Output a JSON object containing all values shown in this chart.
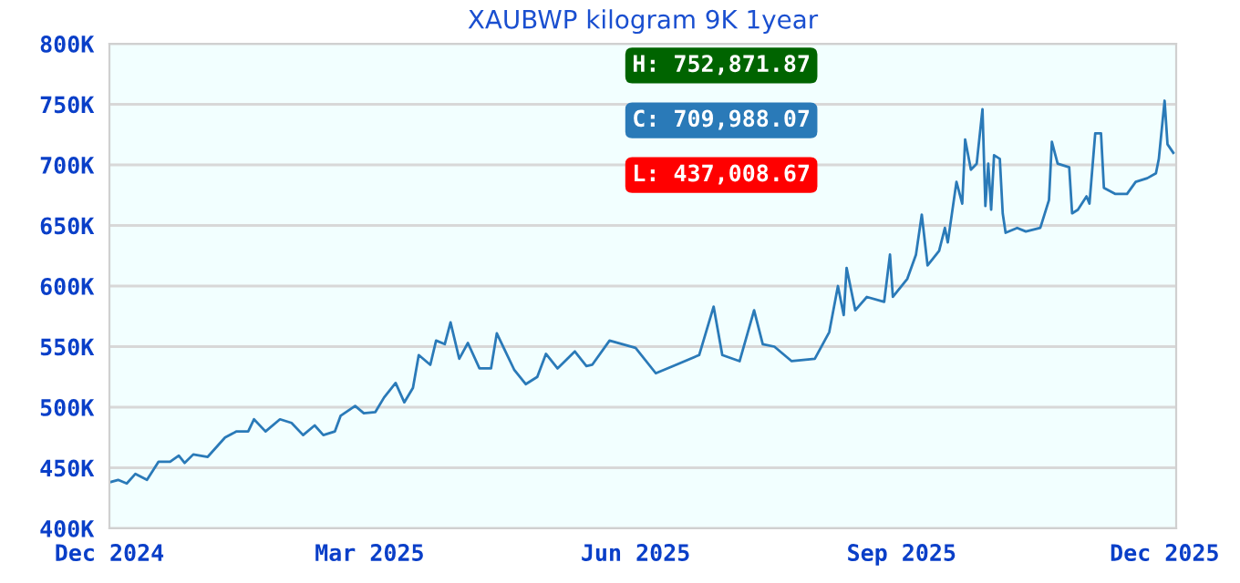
{
  "chart_data": {
    "type": "line",
    "title": "XAUBWP kilogram 9K 1year",
    "x": [
      "2024-12-01",
      "2024-12-04",
      "2024-12-07",
      "2024-12-10",
      "2024-12-14",
      "2024-12-18",
      "2024-12-22",
      "2024-12-25",
      "2024-12-27",
      "2024-12-30",
      "2025-01-04",
      "2025-01-10",
      "2025-01-14",
      "2025-01-18",
      "2025-01-20",
      "2025-01-24",
      "2025-01-29",
      "2025-02-02",
      "2025-02-06",
      "2025-02-10",
      "2025-02-13",
      "2025-02-17",
      "2025-02-19",
      "2025-02-24",
      "2025-02-27",
      "2025-03-03",
      "2025-03-06",
      "2025-03-10",
      "2025-03-13",
      "2025-03-16",
      "2025-03-18",
      "2025-03-22",
      "2025-03-24",
      "2025-03-27",
      "2025-03-29",
      "2025-04-01",
      "2025-04-04",
      "2025-04-08",
      "2025-04-12",
      "2025-04-14",
      "2025-04-17",
      "2025-04-20",
      "2025-04-24",
      "2025-04-28",
      "2025-05-01",
      "2025-05-05",
      "2025-05-11",
      "2025-05-15",
      "2025-05-17",
      "2025-05-23",
      "2025-06-01",
      "2025-06-08",
      "2025-06-15",
      "2025-06-23",
      "2025-06-28",
      "2025-07-01",
      "2025-07-07",
      "2025-07-12",
      "2025-07-15",
      "2025-07-19",
      "2025-07-25",
      "2025-08-02",
      "2025-08-07",
      "2025-08-10",
      "2025-08-12",
      "2025-08-13",
      "2025-08-16",
      "2025-08-20",
      "2025-08-26",
      "2025-08-28",
      "2025-08-29",
      "2025-09-03",
      "2025-09-06",
      "2025-09-08",
      "2025-09-10",
      "2025-09-14",
      "2025-09-16",
      "2025-09-17",
      "2025-09-20",
      "2025-09-22",
      "2025-09-23",
      "2025-09-25",
      "2025-09-27",
      "2025-09-29",
      "2025-09-30",
      "2025-10-01",
      "2025-10-02",
      "2025-10-03",
      "2025-10-05",
      "2025-10-06",
      "2025-10-07",
      "2025-10-11",
      "2025-10-14",
      "2025-10-19",
      "2025-10-22",
      "2025-10-23",
      "2025-10-25",
      "2025-10-29",
      "2025-10-30",
      "2025-11-01",
      "2025-11-04",
      "2025-11-05",
      "2025-11-07",
      "2025-11-09",
      "2025-11-10",
      "2025-11-14",
      "2025-11-18",
      "2025-11-21",
      "2025-11-25",
      "2025-11-28",
      "2025-11-29",
      "2025-12-01",
      "2025-12-02",
      "2025-12-04"
    ],
    "series": [
      {
        "color": "#2a7ab8",
        "values": [
          438000,
          440000,
          437000,
          445000,
          440000,
          455000,
          455000,
          460000,
          454000,
          461000,
          459000,
          475000,
          480000,
          480000,
          490000,
          480000,
          490000,
          487000,
          477000,
          485000,
          477000,
          480000,
          493000,
          501000,
          495000,
          496000,
          508000,
          520000,
          504000,
          516000,
          543000,
          535000,
          555000,
          552000,
          570000,
          540000,
          553000,
          532000,
          532000,
          561000,
          546000,
          531000,
          519000,
          525000,
          544000,
          532000,
          546000,
          534000,
          535000,
          555000,
          549000,
          528000,
          535000,
          543000,
          583000,
          543000,
          538000,
          580000,
          552000,
          550000,
          538000,
          540000,
          562000,
          600000,
          576000,
          615000,
          580000,
          591000,
          587000,
          626000,
          591000,
          606000,
          626000,
          659000,
          617000,
          629000,
          648000,
          636000,
          686000,
          668000,
          721000,
          696000,
          701000,
          746000,
          666000,
          701000,
          663000,
          708000,
          705000,
          660000,
          644000,
          648000,
          645000,
          648000,
          671000,
          719000,
          701000,
          698000,
          660000,
          663000,
          674000,
          668000,
          726000,
          726000,
          681000,
          676000,
          676000,
          686000,
          689000,
          693000,
          705000,
          753000,
          717000,
          710000
        ]
      }
    ],
    "xlim": [
      "2024-12-01",
      "2025-12-05"
    ],
    "xticks": [
      {
        "value": "2024-12-01",
        "label": "Dec 2024"
      },
      {
        "value": "2025-03-01",
        "label": "Mar 2025"
      },
      {
        "value": "2025-06-01",
        "label": "Jun 2025"
      },
      {
        "value": "2025-09-01",
        "label": "Sep 2025"
      },
      {
        "value": "2025-12-01",
        "label": "Dec 2025"
      }
    ],
    "ylim": [
      400000,
      800000
    ],
    "yticks": [
      {
        "value": 400000,
        "label": "400K"
      },
      {
        "value": 450000,
        "label": "450K"
      },
      {
        "value": 500000,
        "label": "500K"
      },
      {
        "value": 550000,
        "label": "550K"
      },
      {
        "value": 600000,
        "label": "600K"
      },
      {
        "value": 650000,
        "label": "650K"
      },
      {
        "value": 700000,
        "label": "700K"
      },
      {
        "value": 750000,
        "label": "750K"
      },
      {
        "value": 800000,
        "label": "800K"
      }
    ],
    "annotations": [
      "H: 752,871.87",
      "C: 709,988.07",
      "L: 437,008.67"
    ],
    "grid": "y",
    "legend": false,
    "marker": "none",
    "line_style": "solid"
  }
}
